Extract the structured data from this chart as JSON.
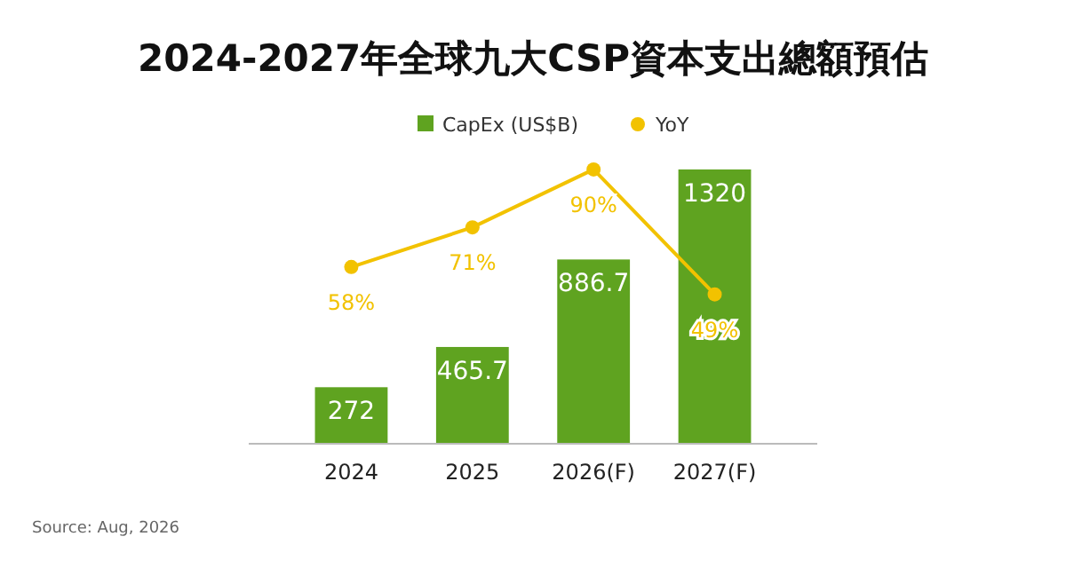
{
  "chart_data": {
    "type": "bar",
    "title": "2024-2027年全球九大CSP資本支出總額預估",
    "categories": [
      "2024",
      "2025",
      "2026(F)",
      "2027(F)"
    ],
    "series": [
      {
        "name": "CapEx (US$B)",
        "color": "#5fa320",
        "values": [
          272,
          465.7,
          886.7,
          1320
        ],
        "value_labels": [
          "272",
          "465.7",
          "886.7",
          "1320"
        ]
      },
      {
        "name": "YoY",
        "type": "line",
        "axis": "y2",
        "color": "#f2c200",
        "marker": "circle",
        "values": [
          58,
          71,
          90,
          49
        ],
        "value_labels": [
          "58%",
          "71%",
          "90%",
          "49%"
        ]
      }
    ],
    "legend": "top",
    "annotations": [
      "Source: Aug, 2026"
    ]
  }
}
